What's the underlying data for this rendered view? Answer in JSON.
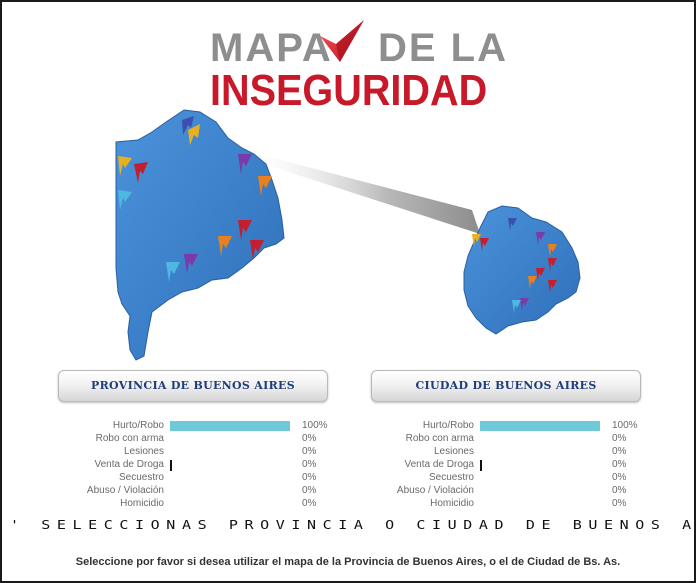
{
  "logo": {
    "word1": "MAPA",
    "word2": "DE LA",
    "word3": "INSEGURIDAD",
    "gray": "#8e8e8e",
    "red": "#c8192a"
  },
  "colors": {
    "map_blue": "#3a7fc9",
    "bar": "#6fc9d8",
    "button_text": "#1f3d7a"
  },
  "buttons": {
    "provincia": "PROVINCIA DE BUENOS AIRES",
    "ciudad": "CIUDAD DE BUENOS AIRES"
  },
  "stats": {
    "provincia": [
      {
        "label": "Hurto/Robo",
        "percent": "100%",
        "value": 1.0
      },
      {
        "label": "Robo con arma",
        "percent": "0%",
        "value": 0
      },
      {
        "label": "Lesiones",
        "percent": "0%",
        "value": 0
      },
      {
        "label": "Venta de Droga",
        "percent": "0%",
        "value": 0
      },
      {
        "label": "Secuestro",
        "percent": "0%",
        "value": 0
      },
      {
        "label": "Abuso / Violación",
        "percent": "0%",
        "value": 0
      },
      {
        "label": "Homicidio",
        "percent": "0%",
        "value": 0
      }
    ],
    "ciudad": [
      {
        "label": "Hurto/Robo",
        "percent": "100%",
        "value": 1.0
      },
      {
        "label": "Robo con arma",
        "percent": "0%",
        "value": 0
      },
      {
        "label": "Lesiones",
        "percent": "0%",
        "value": 0
      },
      {
        "label": "Venta de Droga",
        "percent": "0%",
        "value": 0
      },
      {
        "label": "Secuestro",
        "percent": "0%",
        "value": 0
      },
      {
        "label": "Abuso / Violación",
        "percent": "0%",
        "value": 0
      },
      {
        "label": "Homicidio",
        "percent": "0%",
        "value": 0
      }
    ]
  },
  "headline": "' SELECCIONAS PROVINCIA O CIUDAD DE BUENOS AIRES",
  "instruction": "Seleccione por favor si desea utilizar el mapa de la Provincia de Buenos Aires, o el de Ciudad de Bs. As."
}
